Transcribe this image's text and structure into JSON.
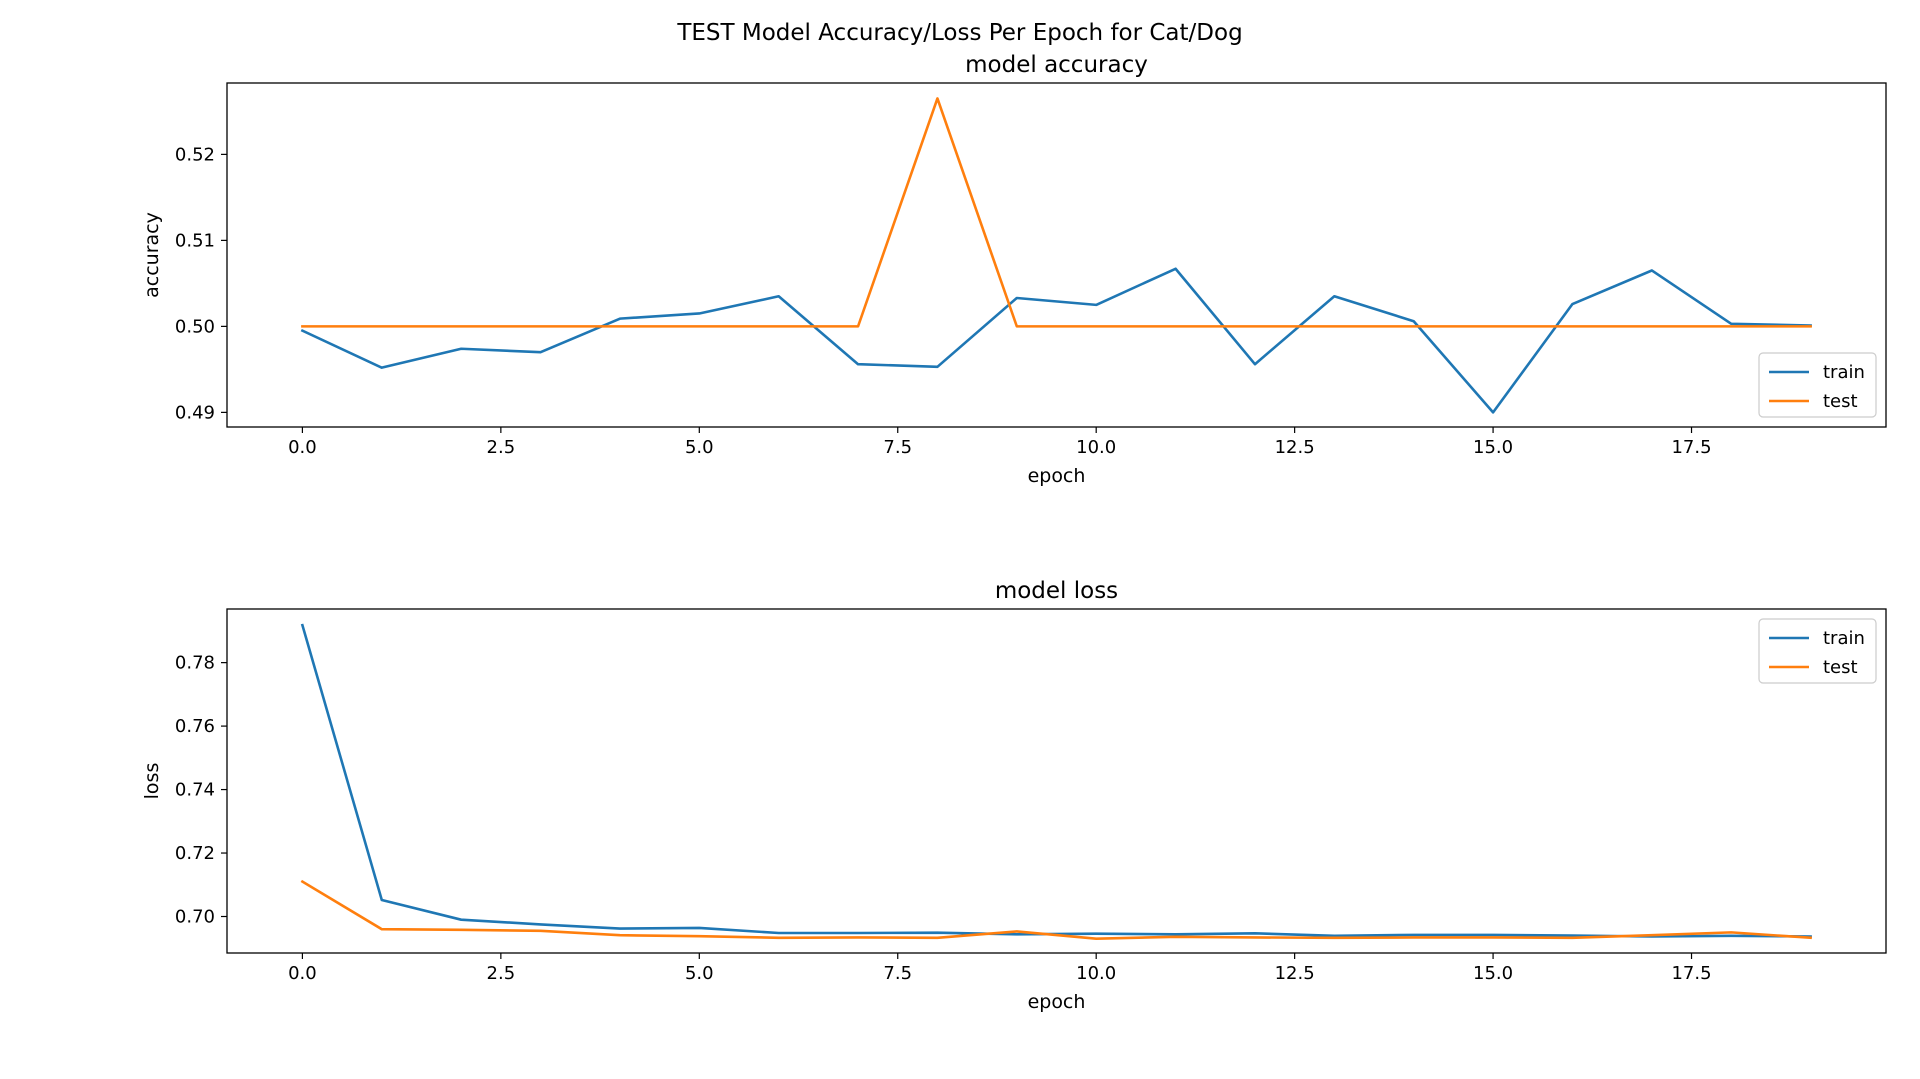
{
  "figure": {
    "suptitle": "TEST Model Accuracy/Loss Per Epoch for Cat/Dog"
  },
  "chart_data": [
    {
      "type": "line",
      "title": "model accuracy",
      "xlabel": "epoch",
      "ylabel": "accuracy",
      "xlim": [
        -0.95,
        19.95
      ],
      "ylim": [
        0.4883,
        0.5283
      ],
      "xticks": [
        0,
        2.5,
        5,
        7.5,
        10,
        12.5,
        15,
        17.5
      ],
      "xtick_labels": [
        "0.0",
        "2.5",
        "5.0",
        "7.5",
        "10.0",
        "12.5",
        "15.0",
        "17.5"
      ],
      "yticks": [
        0.49,
        0.5,
        0.51,
        0.52
      ],
      "ytick_labels": [
        "0.49",
        "0.50",
        "0.51",
        "0.52"
      ],
      "legend": "bottom-right",
      "grid": false,
      "x": [
        0,
        1,
        2,
        3,
        4,
        5,
        6,
        7,
        8,
        9,
        10,
        11,
        12,
        13,
        14,
        15,
        16,
        17,
        18,
        19
      ],
      "series": [
        {
          "name": "train",
          "color": "#1f77b4",
          "values": [
            0.4995,
            0.4952,
            0.4974,
            0.497,
            0.5009,
            0.5015,
            0.5035,
            0.4956,
            0.4953,
            0.5033,
            0.5025,
            0.5067,
            0.4956,
            0.5035,
            0.5006,
            0.49,
            0.5026,
            0.5065,
            0.5003,
            0.5001
          ]
        },
        {
          "name": "test",
          "color": "#ff7f0e",
          "values": [
            0.5,
            0.5,
            0.5,
            0.5,
            0.5,
            0.5,
            0.5,
            0.5,
            0.5265,
            0.5,
            0.5,
            0.5,
            0.5,
            0.5,
            0.5,
            0.5,
            0.5,
            0.5,
            0.5,
            0.5
          ]
        }
      ]
    },
    {
      "type": "line",
      "title": "model loss",
      "xlabel": "epoch",
      "ylabel": "loss",
      "xlim": [
        -0.95,
        19.95
      ],
      "ylim": [
        0.6885,
        0.7969
      ],
      "xticks": [
        0,
        2.5,
        5,
        7.5,
        10,
        12.5,
        15,
        17.5
      ],
      "xtick_labels": [
        "0.0",
        "2.5",
        "5.0",
        "7.5",
        "10.0",
        "12.5",
        "15.0",
        "17.5"
      ],
      "yticks": [
        0.7,
        0.72,
        0.74,
        0.76,
        0.78
      ],
      "ytick_labels": [
        "0.70",
        "0.72",
        "0.74",
        "0.76",
        "0.78"
      ],
      "legend": "top-right",
      "grid": false,
      "x": [
        0,
        1,
        2,
        3,
        4,
        5,
        6,
        7,
        8,
        9,
        10,
        11,
        12,
        13,
        14,
        15,
        16,
        17,
        18,
        19
      ],
      "series": [
        {
          "name": "train",
          "color": "#1f77b4",
          "values": [
            0.7918,
            0.7052,
            0.699,
            0.6975,
            0.6962,
            0.6964,
            0.6948,
            0.6948,
            0.6949,
            0.6944,
            0.6946,
            0.6944,
            0.6947,
            0.6939,
            0.6942,
            0.6942,
            0.694,
            0.6937,
            0.6939,
            0.6937
          ]
        },
        {
          "name": "test",
          "color": "#ff7f0e",
          "values": [
            0.711,
            0.696,
            0.6958,
            0.6955,
            0.6941,
            0.6938,
            0.6933,
            0.6934,
            0.6933,
            0.6953,
            0.693,
            0.6936,
            0.6934,
            0.6933,
            0.6934,
            0.6934,
            0.6933,
            0.6941,
            0.695,
            0.6933
          ]
        }
      ]
    }
  ]
}
